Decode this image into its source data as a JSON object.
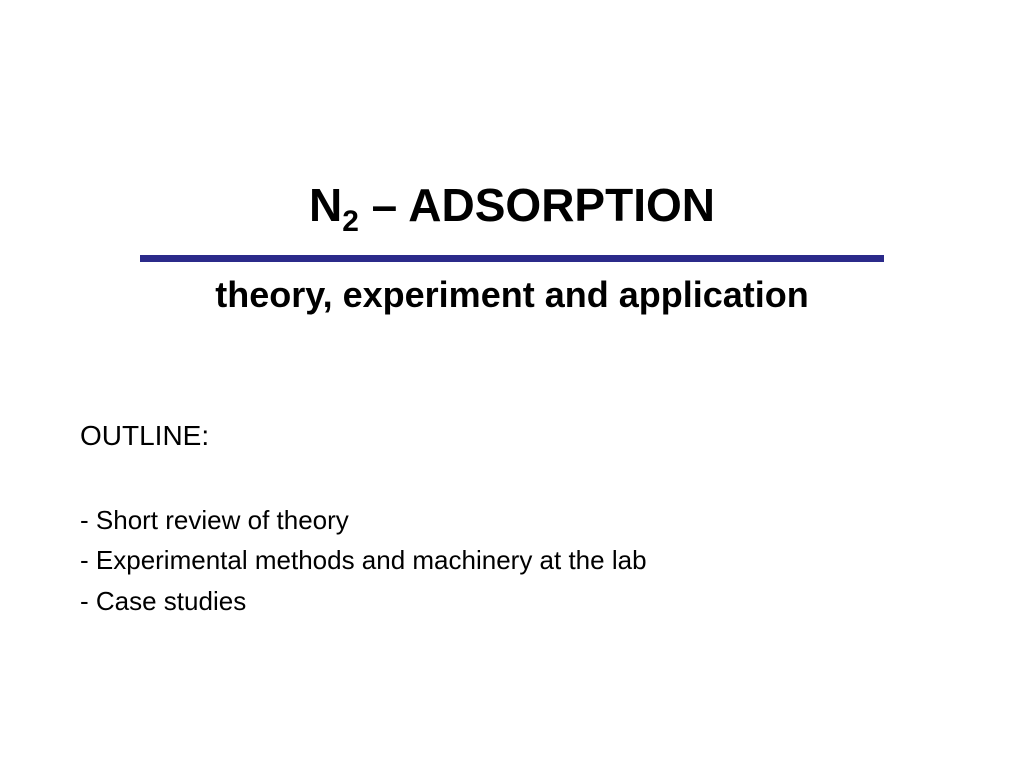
{
  "slide": {
    "title_prefix": "N",
    "title_subscript": "2",
    "title_suffix": " – ADSORPTION",
    "subtitle": "theory, experiment and application",
    "divider_color": "#2b2a8a",
    "background_color": "#ffffff",
    "title_fontsize": 46,
    "subtitle_fontsize": 36,
    "outline_heading": "OUTLINE:",
    "outline_heading_fontsize": 28,
    "outline_fontsize": 26,
    "outline_items": [
      "Short review of theory",
      "Experimental methods and machinery at the lab",
      "Case studies"
    ],
    "text_color": "#000000"
  }
}
